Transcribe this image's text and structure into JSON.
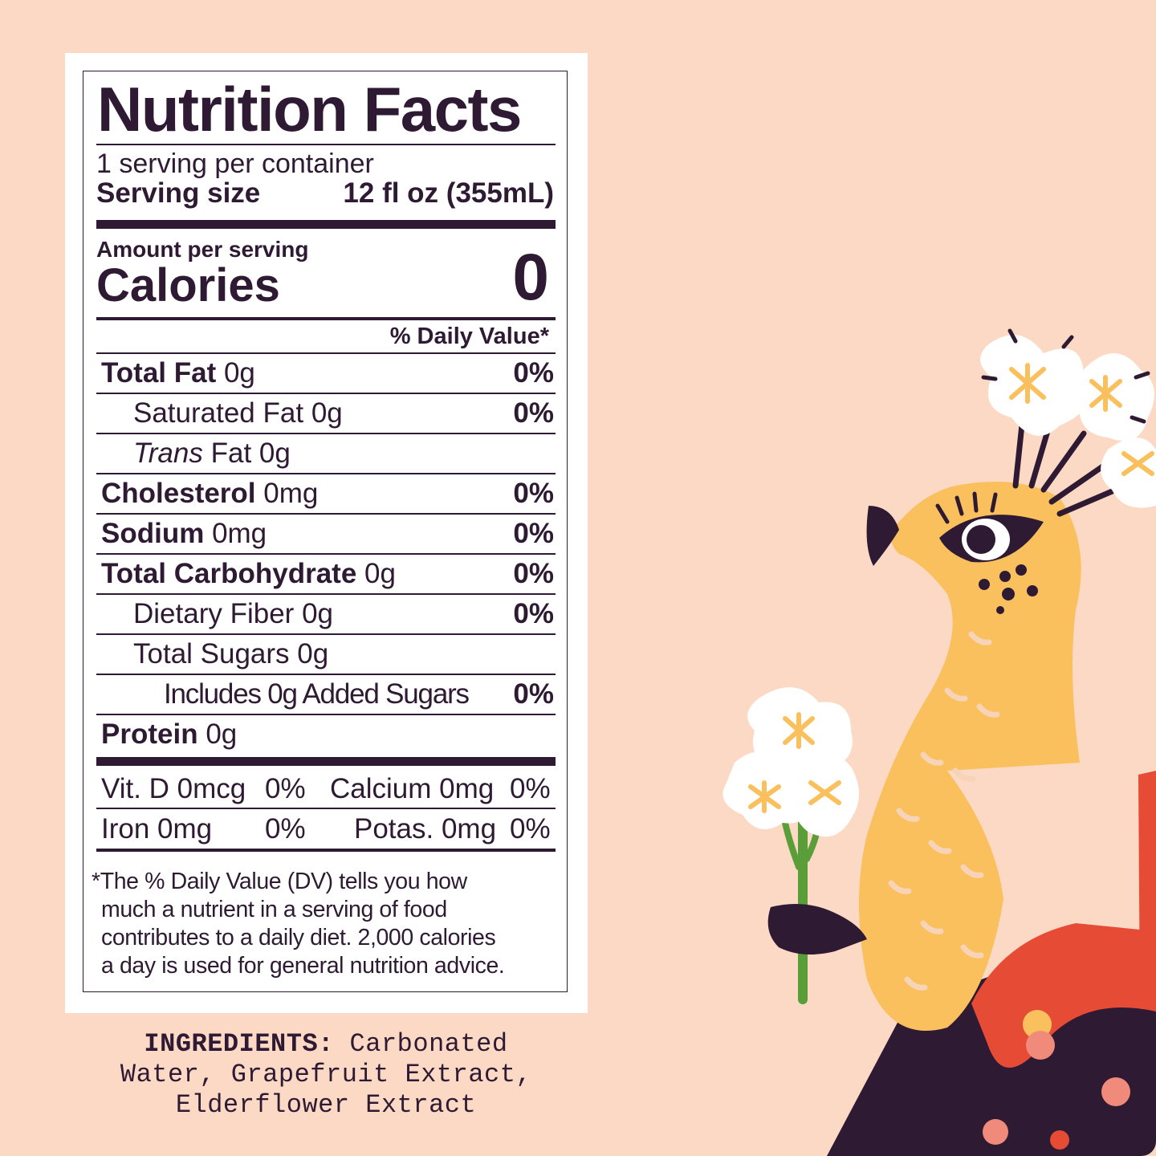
{
  "label": {
    "title": "Nutrition Facts",
    "servings_per_container": "1 serving per container",
    "serving_size_label": "Serving size",
    "serving_size_value": "12 fl oz (355mL)",
    "amount_per_serving": "Amount per serving",
    "calories_label": "Calories",
    "calories_value": "0",
    "daily_value_header": "% Daily Value*",
    "nutrients": [
      {
        "name": "Total Fat",
        "amount": "0g",
        "dv": "0%"
      },
      {
        "name": "Saturated Fat",
        "amount": "0g",
        "dv": "0%"
      },
      {
        "name": "Trans",
        "name_suffix": "Fat",
        "amount": "0g",
        "dv": ""
      },
      {
        "name": "Cholesterol",
        "amount": "0mg",
        "dv": "0%"
      },
      {
        "name": "Sodium",
        "amount": "0mg",
        "dv": "0%"
      },
      {
        "name": "Total Carbohydrate",
        "amount": "0g",
        "dv": "0%"
      },
      {
        "name": "Dietary Fiber",
        "amount": "0g",
        "dv": "0%"
      },
      {
        "name": "Total Sugars",
        "amount": "0g",
        "dv": ""
      },
      {
        "name": "Includes 0g Added Sugars",
        "amount": "",
        "dv": "0%"
      },
      {
        "name": "Protein",
        "amount": "0g",
        "dv": ""
      }
    ],
    "vitamins": [
      {
        "name": "Vit. D 0mcg",
        "dv": "0%"
      },
      {
        "name": "Calcium 0mg",
        "dv": "0%"
      },
      {
        "name": "Iron 0mg",
        "dv": "0%"
      },
      {
        "name": "Potas. 0mg",
        "dv": "0%"
      }
    ],
    "footnote": [
      "*The % Daily Value (DV) tells you how",
      "much a nutrient in a serving of food",
      "contributes to a daily diet. 2,000 calories",
      "a day is used for general nutrition advice."
    ]
  },
  "ingredients": {
    "heading": "INGREDIENTS:",
    "lines": [
      "Carbonated",
      "Water, Grapefruit Extract,",
      "Elderflower Extract"
    ]
  },
  "colors": {
    "background": "#fcd9c5",
    "ink": "#2e1a33",
    "bird": "#f9c05d",
    "red": "#e64b35",
    "flower": "#ffffff",
    "stem": "#5a9e3a"
  }
}
